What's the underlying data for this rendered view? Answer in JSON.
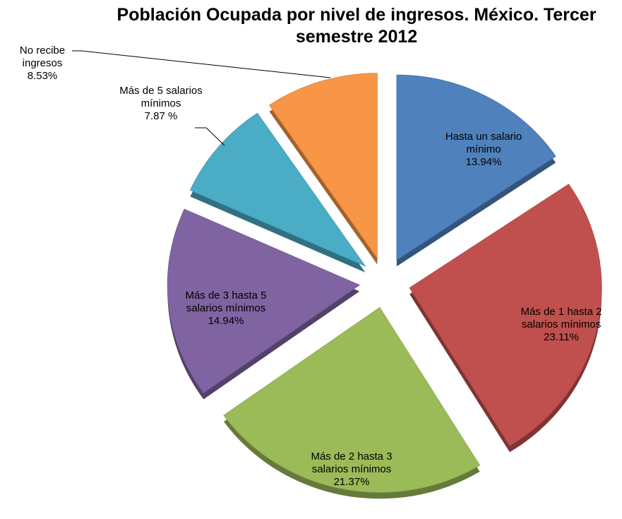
{
  "chart_data": {
    "type": "pie",
    "title": "Población Ocupada por nivel de ingresos. México. Tercer semestre 2012",
    "categories": [
      "Hasta un salario mínimo",
      "Más de 1 hasta 2 salarios mínimos",
      "Más de 2 hasta 3 salarios mínimos",
      "Más de 3 hasta 5 salarios mínimos",
      "Más de 5 salarios mínimos",
      "No recibe ingresos"
    ],
    "values": [
      13.94,
      23.11,
      21.37,
      14.94,
      7.87,
      8.53
    ],
    "value_labels": [
      "13.94%",
      "23.11%",
      "21.37%",
      "14.94%",
      "7.87 %",
      "8.53%"
    ],
    "colors": [
      "#4f81bd",
      "#c0504d",
      "#9bbb59",
      "#8064a2",
      "#4bacc6",
      "#f79646"
    ]
  }
}
